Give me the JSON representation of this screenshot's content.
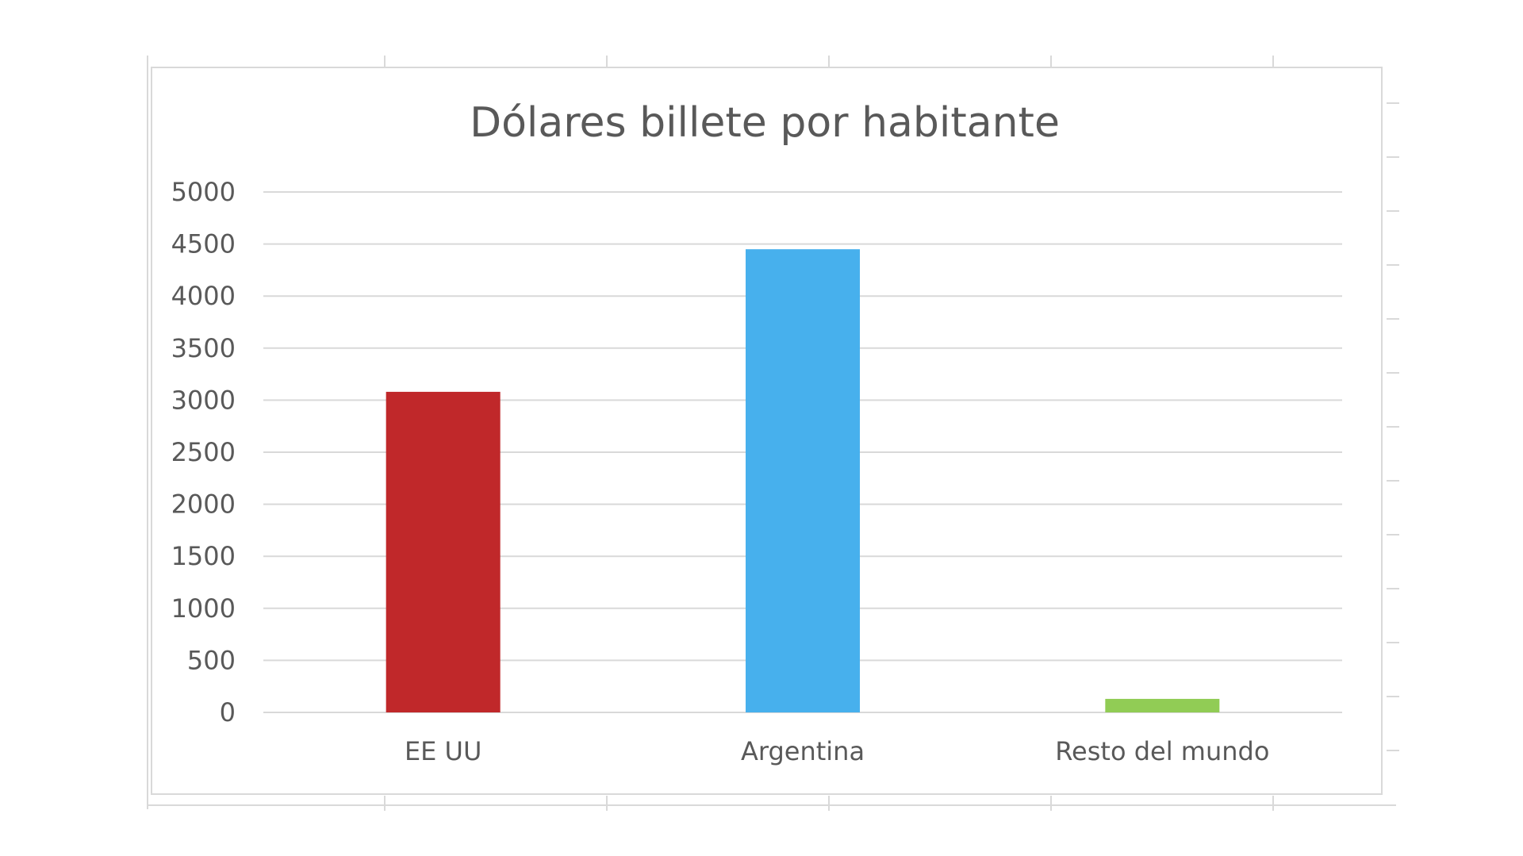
{
  "chart_data": {
    "type": "bar",
    "title": "Dólares billete por habitante",
    "categories": [
      "EE UU",
      "Argentina",
      "Resto del mundo"
    ],
    "values": [
      3080,
      4450,
      130
    ],
    "bar_colors": [
      "#c0282a",
      "#47b0ed",
      "#91cc55"
    ],
    "ylim": [
      0,
      5000
    ],
    "yticks": [
      0,
      500,
      1000,
      1500,
      2000,
      2500,
      3000,
      3500,
      4000,
      4500,
      5000
    ],
    "ytick_labels": [
      "0",
      "500",
      "1000",
      "1500",
      "2000",
      "2500",
      "3000",
      "3500",
      "4000",
      "4500",
      "5000"
    ],
    "grid": true,
    "gridline_color": "#d9d9d9",
    "legend": "none",
    "xlabel": "",
    "ylabel": ""
  }
}
